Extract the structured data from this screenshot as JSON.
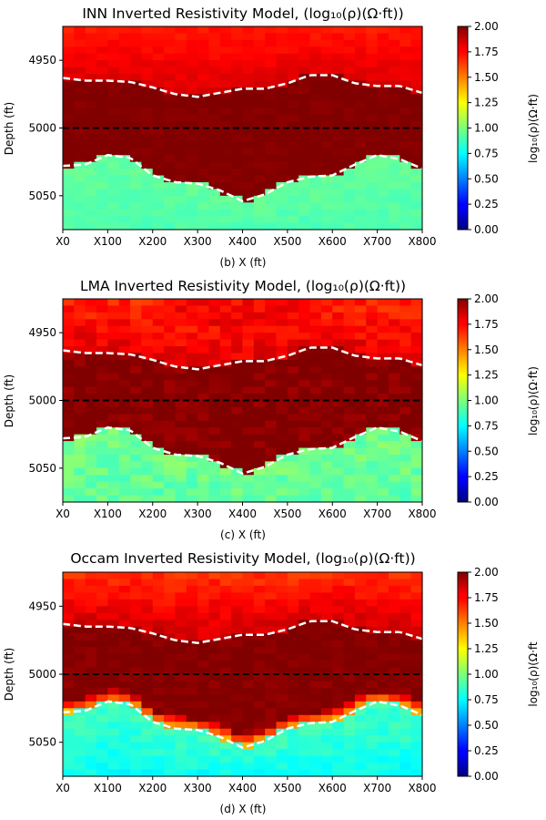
{
  "chart_data": [
    {
      "type": "heatmap",
      "title": "INN Inverted Resistivity Model, (log₁₀(ρ)(Ω·ft))",
      "xlabel": "(b) X (ft)",
      "ylabel": "Depth (ft)",
      "x_ticks": [
        "X0",
        "X100",
        "X200",
        "X300",
        "X400",
        "X500",
        "X600",
        "X700",
        "X800"
      ],
      "y_ticks": [
        4950,
        5000,
        5050
      ],
      "ylim": [
        5075,
        4925
      ],
      "xlim": [
        0,
        800
      ],
      "colorbar": {
        "label": "log₁₀(ρ)(Ω·ft)",
        "min": 0.0,
        "max": 2.0,
        "ticks": [
          "0.00",
          "0.25",
          "0.50",
          "0.75",
          "1.00",
          "1.25",
          "1.50",
          "1.75",
          "2.00"
        ]
      },
      "layers": {
        "top_value": 1.7,
        "middle_value": 2.0,
        "bottom_value": 0.95,
        "texture": 0.03
      },
      "reference_line_depth": 5000,
      "upper_boundary": {
        "x": [
          0,
          50,
          100,
          150,
          200,
          250,
          300,
          350,
          400,
          450,
          500,
          550,
          600,
          650,
          700,
          750,
          800
        ],
        "depth": [
          4963,
          4965,
          4965,
          4966,
          4970,
          4975,
          4977,
          4974,
          4971,
          4971,
          4967,
          4961,
          4961,
          4967,
          4969,
          4969,
          4974
        ]
      },
      "lower_boundary": {
        "x": [
          0,
          50,
          100,
          150,
          200,
          250,
          300,
          350,
          400,
          450,
          500,
          550,
          600,
          650,
          700,
          750,
          800
        ],
        "depth": [
          5028,
          5027,
          5020,
          5022,
          5035,
          5040,
          5041,
          5046,
          5054,
          5049,
          5040,
          5036,
          5035,
          5027,
          5020,
          5023,
          5030
        ]
      }
    },
    {
      "type": "heatmap",
      "title": "LMA Inverted Resistivity Model, (log₁₀(ρ)(Ω·ft))",
      "xlabel": "(c) X (ft)",
      "ylabel": "Depth (ft)",
      "x_ticks": [
        "X0",
        "X100",
        "X200",
        "X300",
        "X400",
        "X500",
        "X600",
        "X700",
        "X800"
      ],
      "y_ticks": [
        4950,
        5000,
        5050
      ],
      "ylim": [
        5075,
        4925
      ],
      "xlim": [
        0,
        800
      ],
      "colorbar": {
        "label": "log₁₀(ρ)(Ω·ft)",
        "min": 0.0,
        "max": 2.0,
        "ticks": [
          "0.00",
          "0.25",
          "0.50",
          "0.75",
          "1.00",
          "1.25",
          "1.50",
          "1.75",
          "2.00"
        ]
      },
      "layers": {
        "top_value": 1.68,
        "middle_value": 2.0,
        "bottom_value": 0.98,
        "texture": 0.07
      },
      "reference_line_depth": 5000,
      "upper_boundary": {
        "x": [
          0,
          50,
          100,
          150,
          200,
          250,
          300,
          350,
          400,
          450,
          500,
          550,
          600,
          650,
          700,
          750,
          800
        ],
        "depth": [
          4963,
          4965,
          4965,
          4966,
          4970,
          4975,
          4977,
          4974,
          4971,
          4971,
          4967,
          4961,
          4961,
          4967,
          4969,
          4969,
          4974
        ]
      },
      "lower_boundary": {
        "x": [
          0,
          50,
          100,
          150,
          200,
          250,
          300,
          350,
          400,
          450,
          500,
          550,
          600,
          650,
          700,
          750,
          800
        ],
        "depth": [
          5028,
          5027,
          5020,
          5022,
          5035,
          5040,
          5041,
          5046,
          5054,
          5049,
          5040,
          5036,
          5035,
          5027,
          5020,
          5023,
          5030
        ]
      }
    },
    {
      "type": "heatmap",
      "title": "Occam Inverted Resistivity Model, (log₁₀(ρ)(Ω·ft))",
      "xlabel": "(d) X (ft)",
      "ylabel": "Depth (ft)",
      "x_ticks": [
        "X0",
        "X100",
        "X200",
        "X300",
        "X400",
        "X500",
        "X600",
        "X700",
        "X800"
      ],
      "y_ticks": [
        4950,
        5000,
        5050
      ],
      "ylim": [
        5075,
        4925
      ],
      "xlim": [
        0,
        800
      ],
      "colorbar": {
        "label": "log₁₀(ρ)(Ω·ft",
        "min": 0.0,
        "max": 2.0,
        "ticks": [
          "0.00",
          "0.25",
          "0.50",
          "0.75",
          "1.00",
          "1.25",
          "1.50",
          "1.75",
          "2.00"
        ]
      },
      "layers": {
        "top_value": 1.65,
        "middle_value": 2.0,
        "bottom_value": 0.88,
        "texture": 0.05
      },
      "reference_line_depth": 5000,
      "upper_boundary": {
        "x": [
          0,
          50,
          100,
          150,
          200,
          250,
          300,
          350,
          400,
          450,
          500,
          550,
          600,
          650,
          700,
          750,
          800
        ],
        "depth": [
          4963,
          4965,
          4965,
          4966,
          4970,
          4975,
          4977,
          4974,
          4971,
          4971,
          4967,
          4961,
          4961,
          4967,
          4969,
          4969,
          4974
        ]
      },
      "lower_boundary": {
        "x": [
          0,
          50,
          100,
          150,
          200,
          250,
          300,
          350,
          400,
          450,
          500,
          550,
          600,
          650,
          700,
          750,
          800
        ],
        "depth": [
          5028,
          5027,
          5020,
          5022,
          5035,
          5040,
          5041,
          5046,
          5054,
          5049,
          5040,
          5036,
          5035,
          5027,
          5020,
          5023,
          5030
        ]
      }
    }
  ]
}
